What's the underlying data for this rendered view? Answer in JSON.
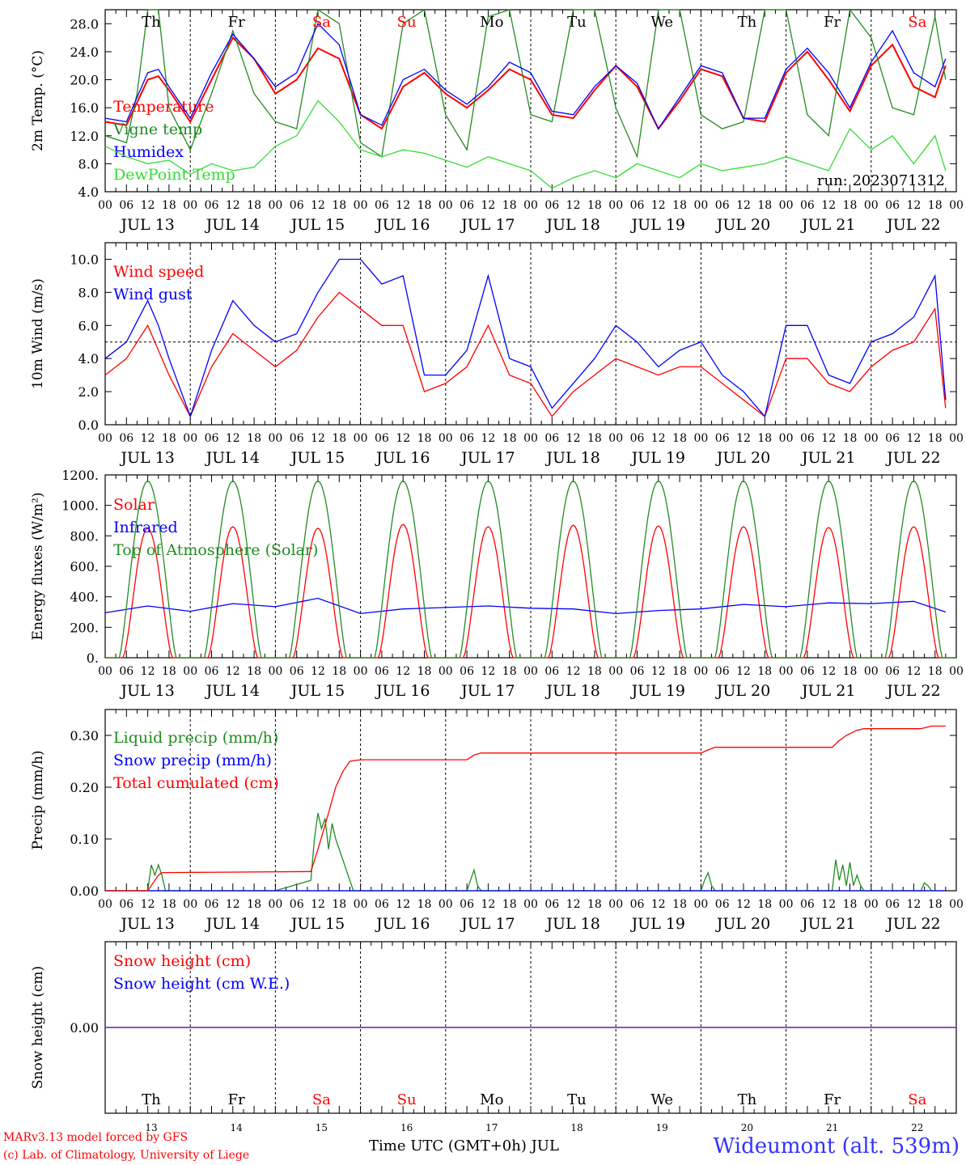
{
  "footer": {
    "model_credit": "MARv3.13 model forced by GFS",
    "lab_credit": "(c) Lab. of Climatology, University of Liege",
    "x_title": "Time UTC (GMT+0h) JUL",
    "station": "Wideumont (alt. 539m)"
  },
  "chart_data": {
    "hour_ticks": [
      "00",
      "06",
      "12",
      "18"
    ],
    "end_tick": "00",
    "dates": [
      "JUL 13",
      "JUL 14",
      "JUL 15",
      "JUL 16",
      "JUL 17",
      "JUL 18",
      "JUL 19",
      "JUL 20",
      "JUL 21",
      "JUL 22"
    ],
    "weekdays": [
      {
        "label": "Th",
        "color": "#000000"
      },
      {
        "label": "Fr",
        "color": "#000000"
      },
      {
        "label": "Sa",
        "color": "#ff0000"
      },
      {
        "label": "Su",
        "color": "#ff0000"
      },
      {
        "label": "Mo",
        "color": "#000000"
      },
      {
        "label": "Tu",
        "color": "#000000"
      },
      {
        "label": "We",
        "color": "#000000"
      },
      {
        "label": "Th",
        "color": "#000000"
      },
      {
        "label": "Fr",
        "color": "#000000"
      },
      {
        "label": "Sa",
        "color": "#ff0000"
      }
    ],
    "day_numbers": [
      "13",
      "14",
      "15",
      "16",
      "17",
      "18",
      "19",
      "20",
      "21",
      "22"
    ],
    "charts": [
      {
        "id": "temp",
        "type": "line",
        "ylabel": "2m Temp. (°C)",
        "ylim": [
          4,
          30
        ],
        "yticks": [
          4,
          8,
          12,
          16,
          20,
          24,
          28
        ],
        "ytick_labels": [
          "4.0",
          "8.0",
          "12.0",
          "16.0",
          "20.0",
          "24.0",
          "28.0"
        ],
        "annotation": "run: 2023071312",
        "series": [
          {
            "name": "Temperature",
            "color": "#ff0000",
            "x": [
              0,
              6,
              12,
              15,
              18,
              24,
              30,
              36,
              42,
              48,
              54,
              60,
              66,
              72,
              78,
              84,
              90,
              96,
              102,
              108,
              114,
              120,
              126,
              132,
              138,
              144,
              150,
              156,
              162,
              168,
              174,
              180,
              186,
              192,
              198,
              204,
              210,
              216,
              222,
              228,
              234,
              237
            ],
            "y": [
              14,
              13.5,
              20,
              20.5,
              18.5,
              14,
              20,
              26,
              23,
              18,
              20,
              24.5,
              23,
              15,
              13,
              19,
              21,
              18,
              16,
              18.5,
              21.5,
              20,
              15,
              14.5,
              18.5,
              22,
              19,
              13,
              17,
              21.5,
              20.5,
              14.5,
              14,
              21,
              24,
              20,
              15.5,
              22,
              25,
              19,
              17.5,
              22
            ]
          },
          {
            "name": "Vigne temp",
            "color": "#228b22",
            "x": [
              0,
              6,
              9,
              12,
              15,
              18,
              24,
              30,
              36,
              42,
              48,
              54,
              60,
              66,
              72,
              78,
              84,
              90,
              96,
              102,
              108,
              114,
              120,
              126,
              132,
              138,
              144,
              150,
              156,
              162,
              168,
              174,
              180,
              186,
              192,
              198,
              204,
              210,
              216,
              222,
              228,
              234,
              237
            ],
            "y": [
              12,
              11,
              18,
              30,
              30,
              16,
              10,
              18,
              27,
              18,
              14,
              13,
              30,
              28,
              11,
              9,
              28,
              30,
              15,
              10,
              29,
              30,
              15,
              14,
              30,
              30,
              16,
              9,
              30,
              30,
              15,
              13,
              14,
              30,
              30,
              15,
              12,
              30,
              26,
              16,
              15,
              29,
              20
            ]
          },
          {
            "name": "Humidex",
            "color": "#0000ff",
            "x": [
              0,
              6,
              12,
              15,
              18,
              24,
              30,
              36,
              42,
              48,
              54,
              60,
              66,
              72,
              78,
              84,
              90,
              96,
              102,
              108,
              114,
              120,
              126,
              132,
              138,
              144,
              150,
              156,
              162,
              168,
              174,
              180,
              186,
              192,
              198,
              204,
              210,
              216,
              222,
              228,
              234,
              237
            ],
            "y": [
              14.5,
              14,
              21,
              21.5,
              19,
              14.5,
              21,
              26.5,
              23,
              19,
              21,
              28,
              25,
              15,
              13.5,
              20,
              21.5,
              18.5,
              16.5,
              19,
              22.5,
              21,
              15.5,
              15,
              19,
              22,
              19.5,
              13,
              17.5,
              22,
              21,
              14.5,
              14.5,
              21.5,
              24.5,
              21,
              16,
              22.5,
              27,
              21,
              19,
              23
            ]
          },
          {
            "name": "DewPoint Temp",
            "color": "#33dd33",
            "x": [
              0,
              6,
              12,
              18,
              24,
              30,
              36,
              42,
              48,
              54,
              60,
              66,
              72,
              78,
              84,
              90,
              96,
              102,
              108,
              114,
              120,
              126,
              132,
              138,
              144,
              150,
              156,
              162,
              168,
              174,
              180,
              186,
              192,
              198,
              204,
              210,
              216,
              222,
              228,
              234,
              237
            ],
            "y": [
              10.5,
              9,
              8,
              8.5,
              6.5,
              8,
              7,
              7.5,
              10.5,
              12,
              17,
              14,
              10,
              9,
              10,
              9.5,
              8.5,
              7.5,
              9,
              8,
              7,
              4.5,
              6,
              7,
              6,
              8,
              7,
              6,
              8,
              7,
              7.5,
              8,
              9,
              8,
              7,
              13,
              10,
              12,
              8,
              12,
              7
            ]
          }
        ]
      },
      {
        "id": "wind",
        "type": "line",
        "ylabel": "10m Wind (m/s)",
        "ylim": [
          0,
          11
        ],
        "yticks": [
          0,
          2,
          4,
          6,
          8,
          10
        ],
        "ytick_labels": [
          "0.0",
          "2.0",
          "4.0",
          "6.0",
          "8.0",
          "10.0"
        ],
        "hline": 5,
        "series": [
          {
            "name": "Wind speed",
            "color": "#ff0000",
            "x": [
              0,
              6,
              12,
              15,
              18,
              24,
              30,
              36,
              42,
              48,
              54,
              60,
              66,
              72,
              78,
              84,
              90,
              96,
              102,
              108,
              114,
              120,
              126,
              132,
              138,
              144,
              150,
              156,
              162,
              168,
              174,
              180,
              186,
              192,
              198,
              204,
              210,
              216,
              222,
              228,
              234,
              237
            ],
            "y": [
              3,
              4,
              6,
              4.5,
              3,
              0.5,
              3.5,
              5.5,
              4.5,
              3.5,
              4.5,
              6.5,
              8,
              7,
              6,
              6,
              2,
              2.5,
              3.5,
              6,
              3,
              2.5,
              0.5,
              2,
              3,
              4,
              3.5,
              3,
              3.5,
              3.5,
              2.5,
              1.5,
              0.5,
              4,
              4,
              2.5,
              2,
              3.5,
              4.5,
              5,
              7,
              1
            ]
          },
          {
            "name": "Wind gust",
            "color": "#0000ff",
            "x": [
              0,
              6,
              12,
              15,
              18,
              24,
              30,
              36,
              42,
              48,
              54,
              60,
              66,
              72,
              78,
              84,
              90,
              96,
              102,
              108,
              114,
              120,
              126,
              132,
              138,
              144,
              150,
              156,
              162,
              168,
              174,
              180,
              186,
              192,
              198,
              204,
              210,
              216,
              222,
              228,
              234,
              237
            ],
            "y": [
              4,
              5,
              7.5,
              6,
              4,
              0.5,
              4.5,
              7.5,
              6,
              5,
              5.5,
              8,
              10,
              10,
              8.5,
              9,
              3,
              3,
              4.5,
              9,
              4,
              3.5,
              1,
              2.5,
              4,
              6,
              5,
              3.5,
              4.5,
              5,
              3,
              2,
              0.5,
              6,
              6,
              3,
              2.5,
              5,
              5.5,
              6.5,
              9,
              1.5
            ]
          }
        ]
      },
      {
        "id": "energy",
        "type": "line",
        "ylabel": "Energy fluxes (W/m²)",
        "ylim": [
          0,
          1200
        ],
        "yticks": [
          0,
          200,
          400,
          600,
          800,
          1000,
          1200
        ],
        "ytick_labels": [
          "0.",
          "200.",
          "400.",
          "600.",
          "800.",
          "1000.",
          "1200."
        ],
        "series": [
          {
            "name": "Solar",
            "color": "#ff0000",
            "peaks": [
              850,
              860,
              850,
              875,
              860,
              870,
              865,
              860,
              855,
              860
            ]
          },
          {
            "name": "Infrared",
            "color": "#0000ff",
            "x": [
              0,
              12,
              24,
              36,
              48,
              60,
              72,
              84,
              96,
              108,
              120,
              132,
              144,
              156,
              168,
              180,
              192,
              204,
              216,
              228,
              237
            ],
            "y": [
              295,
              340,
              305,
              355,
              335,
              390,
              290,
              320,
              330,
              340,
              325,
              320,
              290,
              310,
              320,
              350,
              335,
              360,
              355,
              370,
              300
            ]
          },
          {
            "name": "Top of Atmosphere (Solar)",
            "color": "#228b22",
            "peak": 1160
          }
        ]
      },
      {
        "id": "precip",
        "type": "line",
        "ylabel": "Precip (mm/h)",
        "ylim": [
          0,
          0.35
        ],
        "yticks": [
          0,
          0.1,
          0.2,
          0.3
        ],
        "ytick_labels": [
          "0.00",
          "0.10",
          "0.20",
          "0.30"
        ],
        "series": [
          {
            "name": "Liquid precip (mm/h)",
            "color": "#228b22",
            "x": [
              0,
              12,
              13,
              14,
              15,
              16,
              17,
              48,
              58,
              59,
              60,
              61,
              62,
              63,
              64,
              65,
              66,
              67,
              68,
              69,
              70,
              72,
              72,
              102,
              103,
              104,
              105,
              106,
              168,
              169,
              170,
              171,
              172,
              205,
              206,
              207,
              208,
              209,
              210,
              211,
              212,
              213,
              214,
              230,
              231,
              232,
              233
            ],
            "y": [
              0,
              0,
              0.05,
              0.03,
              0.05,
              0.03,
              0,
              0,
              0.02,
              0.1,
              0.15,
              0.12,
              0.14,
              0.08,
              0.13,
              0.1,
              0.08,
              0.06,
              0.04,
              0.02,
              0,
              0,
              0,
              0,
              0.02,
              0.04,
              0.01,
              0,
              0,
              0.02,
              0.035,
              0.01,
              0,
              0,
              0.06,
              0.02,
              0.05,
              0.01,
              0.055,
              0.01,
              0.03,
              0.01,
              0,
              0,
              0.015,
              0.01,
              0
            ]
          },
          {
            "name": "Snow precip (mm/h)",
            "color": "#0000ff",
            "x": [
              0,
              237
            ],
            "y": [
              0,
              0
            ]
          },
          {
            "name": "Total cumulated (cm)",
            "color": "#ff0000",
            "x": [
              0,
              12,
              15,
              16,
              58,
              60,
              63,
              65,
              67,
              69,
              72,
              102,
              104,
              106,
              168,
              170,
              172,
              205,
              207,
              209,
              212,
              214,
              230,
              233,
              237
            ],
            "y": [
              0,
              0,
              0.03,
              0.035,
              0.037,
              0.08,
              0.15,
              0.2,
              0.23,
              0.25,
              0.253,
              0.253,
              0.262,
              0.266,
              0.266,
              0.272,
              0.277,
              0.277,
              0.29,
              0.3,
              0.31,
              0.313,
              0.313,
              0.318,
              0.318
            ]
          }
        ]
      },
      {
        "id": "snow",
        "type": "line",
        "ylabel": "Snow height (cm)",
        "ylim": [
          -1,
          1
        ],
        "yticks": [
          0
        ],
        "ytick_labels": [
          "0.00"
        ],
        "series": [
          {
            "name": "Snow height (cm)",
            "color": "#ff0000",
            "x": [
              0,
              240
            ],
            "y": [
              0,
              0
            ]
          },
          {
            "name": "Snow height (cm W.E.)",
            "color": "#0000ff",
            "x": [
              0,
              240
            ],
            "y": [
              0,
              0
            ]
          }
        ]
      }
    ]
  }
}
